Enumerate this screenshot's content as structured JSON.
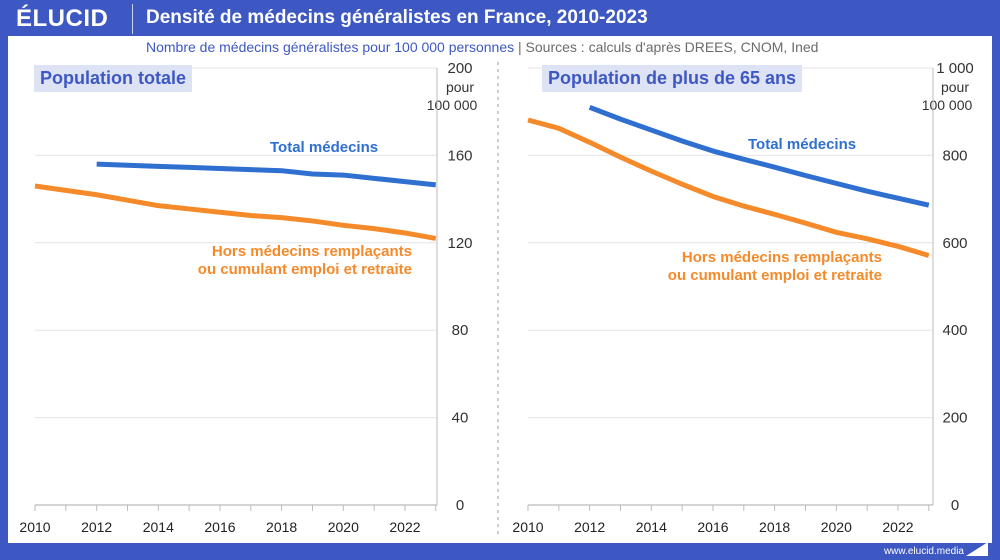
{
  "header": {
    "logo": "ÉLUCID",
    "title": "Densité de médecins généralistes en France, 2010-2023"
  },
  "subtitle": {
    "measure": "Nombre de médecins généralistes pour 100 000 personnes",
    "separator": "|",
    "sources": "Sources : calculs d'après DREES, CNOM, Ined"
  },
  "footer": {
    "url": "www.elucid.media"
  },
  "colors": {
    "frame": "#3d58c2",
    "total": "#2f6fd0",
    "hors": "#f58a2b"
  },
  "chart_data": [
    {
      "type": "line",
      "title": "Population totale",
      "ylabel_unit": [
        "pour",
        "100 000"
      ],
      "x": [
        2010,
        2011,
        2012,
        2013,
        2014,
        2015,
        2016,
        2017,
        2018,
        2019,
        2020,
        2021,
        2022,
        2023
      ],
      "xticks": [
        "2010",
        "2012",
        "2014",
        "2016",
        "2018",
        "2020",
        "2022"
      ],
      "yticks": [
        "0",
        "40",
        "80",
        "120",
        "160",
        "200"
      ],
      "ylim": [
        0,
        200
      ],
      "xlim": [
        2010,
        2023
      ],
      "grid": true,
      "series": [
        {
          "name": "Total médecins",
          "x": [
            2012,
            2013,
            2014,
            2015,
            2016,
            2017,
            2018,
            2019,
            2020,
            2021,
            2022,
            2023
          ],
          "values": [
            156,
            155.5,
            155,
            154.5,
            154,
            153.5,
            153,
            151.5,
            151,
            149.5,
            148,
            146.5
          ]
        },
        {
          "name": "Hors médecins remplaçants ou cumulant emploi et retraite",
          "x": [
            2010,
            2011,
            2012,
            2013,
            2014,
            2015,
            2016,
            2017,
            2018,
            2019,
            2020,
            2021,
            2022,
            2023
          ],
          "values": [
            146,
            144,
            142,
            139.5,
            137,
            135.5,
            134,
            132.5,
            131.5,
            130,
            128,
            126.5,
            124.5,
            122
          ]
        }
      ],
      "labels": {
        "total": "Total médecins",
        "hors": [
          "Hors médecins remplaçants",
          "ou cumulant emploi et retraite"
        ]
      }
    },
    {
      "type": "line",
      "title": "Population de plus de 65 ans",
      "ylabel_unit": [
        "pour",
        "100 000"
      ],
      "x": [
        2010,
        2011,
        2012,
        2013,
        2014,
        2015,
        2016,
        2017,
        2018,
        2019,
        2020,
        2021,
        2022,
        2023
      ],
      "xticks": [
        "2010",
        "2012",
        "2014",
        "2016",
        "2018",
        "2020",
        "2022"
      ],
      "yticks": [
        "0",
        "200",
        "400",
        "600",
        "800",
        "1 000"
      ],
      "ylim": [
        0,
        1000
      ],
      "xlim": [
        2010,
        2023
      ],
      "grid": true,
      "series": [
        {
          "name": "Total médecins",
          "x": [
            2012,
            2013,
            2014,
            2015,
            2016,
            2017,
            2018,
            2019,
            2020,
            2021,
            2022,
            2023
          ],
          "values": [
            910,
            883,
            858,
            833,
            810,
            791,
            773,
            754,
            736,
            718,
            702,
            686
          ]
        },
        {
          "name": "Hors médecins remplaçants ou cumulant emploi et retraite",
          "x": [
            2010,
            2011,
            2012,
            2013,
            2014,
            2015,
            2016,
            2017,
            2018,
            2019,
            2020,
            2021,
            2022,
            2023
          ],
          "values": [
            881,
            862,
            830,
            796,
            764,
            734,
            706,
            684,
            665,
            645,
            624,
            609,
            592,
            571
          ]
        }
      ],
      "labels": {
        "total": "Total médecins",
        "hors": [
          "Hors médecins remplaçants",
          "ou cumulant emploi et retraite"
        ]
      }
    }
  ]
}
